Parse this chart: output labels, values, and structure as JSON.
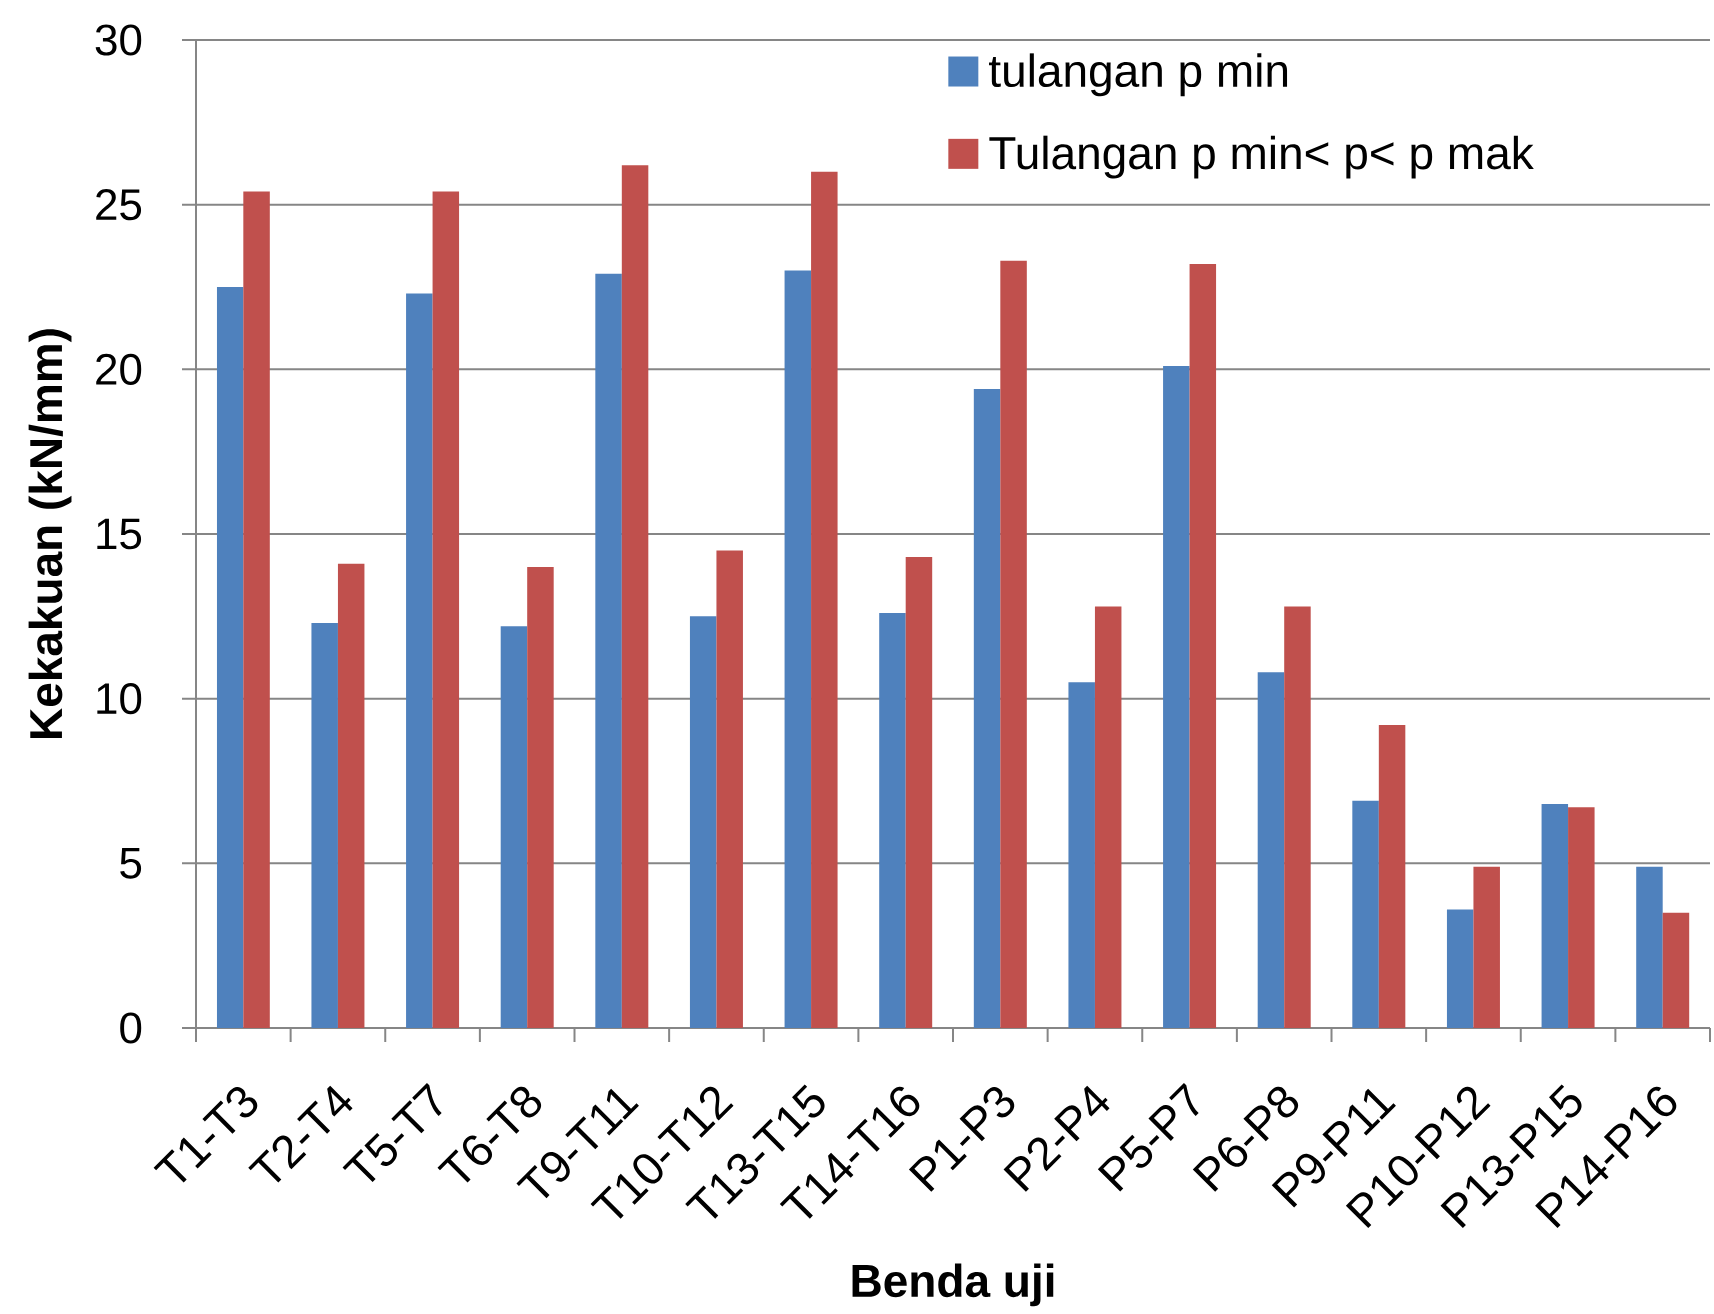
{
  "chart_data": {
    "type": "bar",
    "xlabel": "Benda uji",
    "ylabel": "Kekakuan (kN/mm)",
    "categories": [
      "T1-T3",
      "T2-T4",
      "T5-T7",
      "T6-T8",
      "T9-T11",
      "T10-T12",
      "T13-T15",
      "T14-T16",
      "P1-P3",
      "P2-P4",
      "P5-P7",
      "P6-P8",
      "P9-P11",
      "P10-P12",
      "P13-P15",
      "P14-P16"
    ],
    "series": [
      {
        "name": "tulangan p min",
        "color": "#4f81bd",
        "values": [
          22.5,
          12.3,
          22.3,
          12.2,
          22.9,
          12.5,
          23.0,
          12.6,
          19.4,
          10.5,
          20.1,
          10.8,
          6.9,
          3.6,
          6.8,
          4.9
        ]
      },
      {
        "name": "Tulangan p min< p< p mak",
        "color": "#c0504d",
        "values": [
          25.4,
          14.1,
          25.4,
          14.0,
          26.2,
          14.5,
          26.0,
          14.3,
          23.3,
          12.8,
          23.2,
          12.8,
          9.2,
          4.9,
          6.7,
          3.5
        ]
      }
    ],
    "ylim": [
      0,
      30
    ],
    "yticks": [
      0,
      5,
      10,
      15,
      20,
      25,
      30
    ],
    "grid": "y",
    "legend": "top right"
  }
}
